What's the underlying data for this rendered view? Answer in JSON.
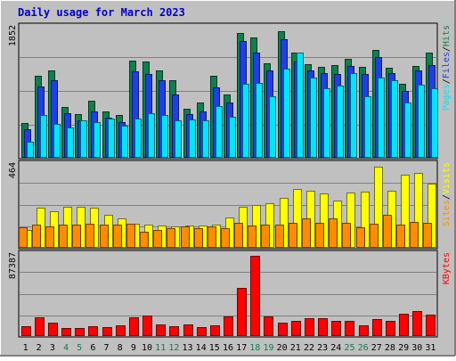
{
  "title": "Daily usage for March 2023",
  "colors": {
    "background": "#c0c0c0",
    "title": "#0000cc",
    "hits": "#117e4e",
    "files": "#1f3fe0",
    "pages": "#00e5ff",
    "visits": "#ffff00",
    "sites": "#ff8c00",
    "kbytes": "#ff0000"
  },
  "chart_data": [
    {
      "type": "bar",
      "panel": "hits-files-pages",
      "max_label": "1852",
      "ylim": [
        0,
        1852
      ],
      "categories": [
        "1",
        "2",
        "3",
        "4",
        "5",
        "6",
        "7",
        "8",
        "9",
        "10",
        "11",
        "12",
        "13",
        "14",
        "15",
        "16",
        "17",
        "18",
        "19",
        "20",
        "21",
        "22",
        "23",
        "24",
        "25",
        "26",
        "27",
        "28",
        "29",
        "30",
        "31"
      ],
      "weekend_days": [
        "4",
        "5",
        "11",
        "12",
        "18",
        "19",
        "25",
        "26"
      ],
      "series": [
        {
          "name": "Hits",
          "values": [
            490,
            1165,
            1250,
            720,
            620,
            810,
            650,
            600,
            1385,
            1370,
            1250,
            1100,
            700,
            790,
            1175,
            900,
            1790,
            1725,
            1355,
            1815,
            1505,
            1335,
            1295,
            1320,
            1410,
            1300,
            1540,
            1285,
            1060,
            1315,
            1500
          ]
        },
        {
          "name": "Files",
          "values": [
            400,
            1010,
            1110,
            630,
            530,
            650,
            560,
            500,
            1230,
            1200,
            1100,
            900,
            620,
            650,
            1000,
            790,
            1670,
            1500,
            1250,
            1700,
            1370,
            1250,
            1210,
            1200,
            1315,
            1200,
            1440,
            1210,
            950,
            1250,
            1320
          ]
        },
        {
          "name": "Pages",
          "values": [
            220,
            610,
            470,
            430,
            530,
            500,
            550,
            450,
            550,
            630,
            600,
            530,
            540,
            530,
            730,
            580,
            1050,
            1070,
            870,
            1270,
            1500,
            1150,
            990,
            1030,
            1210,
            870,
            1140,
            1100,
            790,
            1040,
            990
          ]
        }
      ],
      "legend": [
        "Pages",
        "/",
        "Files",
        "/",
        "Hits"
      ]
    },
    {
      "type": "bar",
      "panel": "visits-sites",
      "max_label": "464",
      "ylim": [
        0,
        464
      ],
      "categories": [
        "1",
        "2",
        "3",
        "4",
        "5",
        "6",
        "7",
        "8",
        "9",
        "10",
        "11",
        "12",
        "13",
        "14",
        "15",
        "16",
        "17",
        "18",
        "19",
        "20",
        "21",
        "22",
        "23",
        "24",
        "25",
        "26",
        "27",
        "28",
        "29",
        "30",
        "31"
      ],
      "series": [
        {
          "name": "Visits",
          "values": [
            95,
            225,
            205,
            230,
            230,
            225,
            185,
            165,
            135,
            130,
            120,
            115,
            120,
            120,
            125,
            170,
            230,
            240,
            250,
            280,
            330,
            320,
            305,
            265,
            310,
            315,
            460,
            320,
            415,
            425,
            360
          ]
        },
        {
          "name": "Sites",
          "values": [
            110,
            130,
            115,
            125,
            130,
            135,
            130,
            130,
            135,
            85,
            95,
            105,
            115,
            105,
            115,
            105,
            140,
            120,
            125,
            125,
            140,
            165,
            140,
            165,
            140,
            110,
            135,
            185,
            130,
            145,
            140
          ]
        }
      ],
      "legend": [
        "Sites",
        "/",
        "Visits"
      ]
    },
    {
      "type": "bar",
      "panel": "kbytes",
      "max_label": "87387",
      "ylim": [
        0,
        87387
      ],
      "categories": [
        "1",
        "2",
        "3",
        "4",
        "5",
        "6",
        "7",
        "8",
        "9",
        "10",
        "11",
        "12",
        "13",
        "14",
        "15",
        "16",
        "17",
        "18",
        "19",
        "20",
        "21",
        "22",
        "23",
        "24",
        "25",
        "26",
        "27",
        "28",
        "29",
        "30",
        "31"
      ],
      "series": [
        {
          "name": "KBytes",
          "values": [
            9500,
            20000,
            13500,
            7500,
            8000,
            9800,
            9000,
            11000,
            20000,
            22000,
            11500,
            10000,
            11500,
            8500,
            11000,
            21000,
            52000,
            87387,
            20500,
            13500,
            16000,
            18500,
            19000,
            15500,
            16000,
            11000,
            17500,
            16000,
            23500,
            27000,
            22500
          ]
        }
      ],
      "legend": [
        "KBytes"
      ]
    }
  ]
}
